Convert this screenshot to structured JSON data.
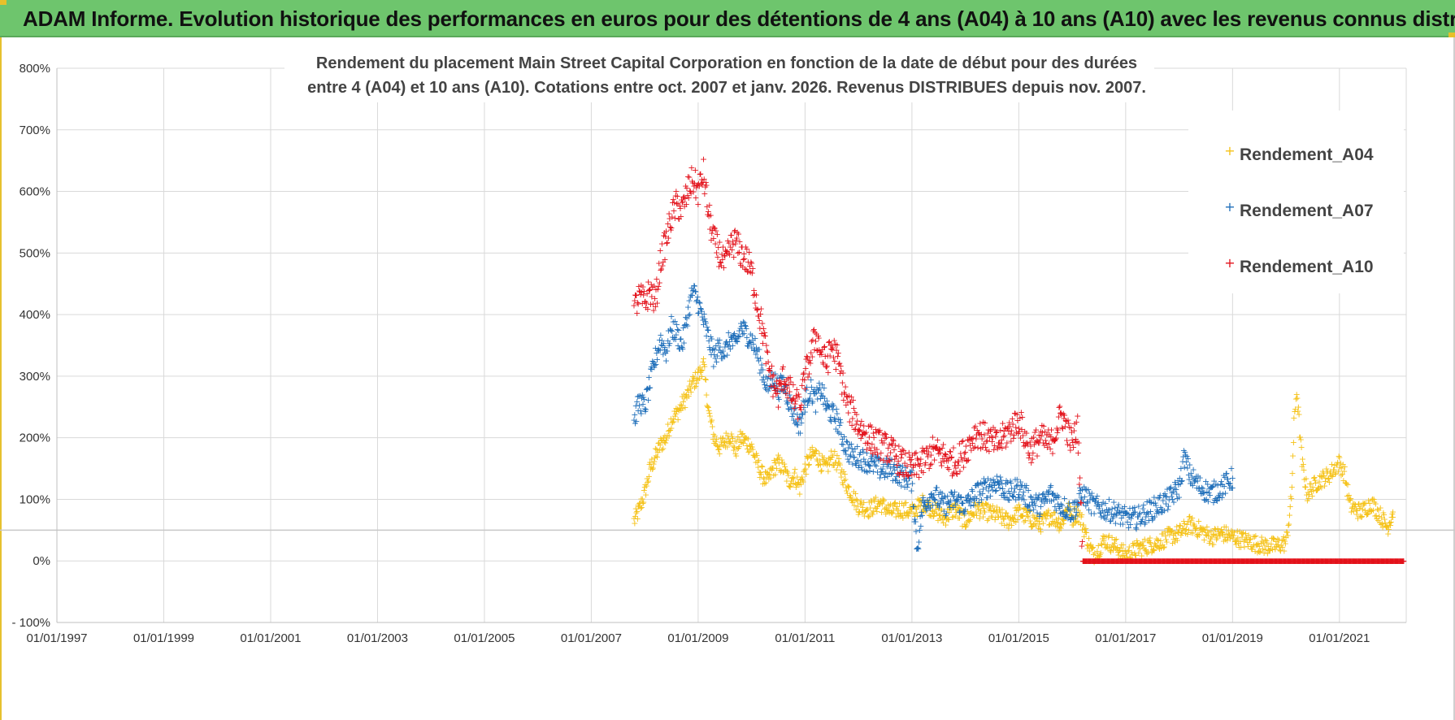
{
  "header": {
    "banner_title": "ADAM Informe. Evolution historique des performances en euros pour des détentions de 4 ans (A04) à 10 ans (A10) avec les revenus connus distribués"
  },
  "colors": {
    "banner_bg": "#6ec56d",
    "A04": "#f5c218",
    "A07": "#1f6fba",
    "A10": "#e3121b",
    "grid": "#d9d9d9",
    "zero_ref": "#c8c8c8"
  },
  "chart_data": {
    "type": "scatter",
    "title_lines": [
      "Rendement du placement Main Street Capital Corporation en fonction de la date de début pour des durées",
      "entre 4 (A04) et 10 ans (A10).  Cotations entre oct. 2007 et janv. 2026.  Revenus DISTRIBUES depuis nov. 2007."
    ],
    "xlabel": "",
    "ylabel": "",
    "x_range": [
      1997.0,
      2022.25
    ],
    "y_range": [
      -100,
      800
    ],
    "y_ticks": [
      -100,
      0,
      100,
      200,
      300,
      400,
      500,
      600,
      700,
      800
    ],
    "y_tick_labels": [
      "- 100%",
      "0%",
      "100%",
      "200%",
      "300%",
      "400%",
      "500%",
      "600%",
      "700%",
      "800%"
    ],
    "x_ticks": [
      1997,
      1999,
      2001,
      2003,
      2005,
      2007,
      2009,
      2011,
      2013,
      2015,
      2017,
      2019,
      2021
    ],
    "x_tick_labels": [
      "01/01/1997",
      "01/01/1999",
      "01/01/2001",
      "01/01/2003",
      "01/01/2005",
      "01/01/2007",
      "01/01/2009",
      "01/01/2011",
      "01/01/2013",
      "01/01/2015",
      "01/01/2017",
      "01/01/2019",
      "01/01/2021"
    ],
    "legend": {
      "position": "top-right",
      "entries": [
        "Rendement_A04",
        "Rendement_A07",
        "Rendement_A10"
      ]
    },
    "series": [
      {
        "name": "Rendement_A04",
        "marker": "+",
        "points": [
          [
            2007.8,
            65
          ],
          [
            2007.9,
            85
          ],
          [
            2008.0,
            110
          ],
          [
            2008.1,
            150
          ],
          [
            2008.2,
            170
          ],
          [
            2008.3,
            190
          ],
          [
            2008.4,
            200
          ],
          [
            2008.5,
            230
          ],
          [
            2008.6,
            240
          ],
          [
            2008.7,
            255
          ],
          [
            2008.8,
            270
          ],
          [
            2008.9,
            290
          ],
          [
            2009.0,
            300
          ],
          [
            2009.1,
            320
          ],
          [
            2009.2,
            240
          ],
          [
            2009.3,
            200
          ],
          [
            2009.4,
            185
          ],
          [
            2009.5,
            195
          ],
          [
            2009.6,
            205
          ],
          [
            2009.7,
            180
          ],
          [
            2009.8,
            200
          ],
          [
            2009.9,
            195
          ],
          [
            2010.0,
            185
          ],
          [
            2010.1,
            160
          ],
          [
            2010.2,
            140
          ],
          [
            2010.3,
            130
          ],
          [
            2010.4,
            150
          ],
          [
            2010.5,
            160
          ],
          [
            2010.6,
            150
          ],
          [
            2010.7,
            130
          ],
          [
            2010.8,
            140
          ],
          [
            2010.9,
            120
          ],
          [
            2011.0,
            150
          ],
          [
            2011.1,
            170
          ],
          [
            2011.2,
            175
          ],
          [
            2011.3,
            160
          ],
          [
            2011.4,
            150
          ],
          [
            2011.5,
            170
          ],
          [
            2011.6,
            160
          ],
          [
            2011.7,
            140
          ],
          [
            2011.8,
            120
          ],
          [
            2011.9,
            105
          ],
          [
            2012.0,
            90
          ],
          [
            2012.2,
            85
          ],
          [
            2012.4,
            95
          ],
          [
            2012.6,
            80
          ],
          [
            2012.8,
            85
          ],
          [
            2013.0,
            80
          ],
          [
            2013.2,
            95
          ],
          [
            2013.4,
            85
          ],
          [
            2013.6,
            70
          ],
          [
            2013.8,
            85
          ],
          [
            2014.0,
            65
          ],
          [
            2014.2,
            85
          ],
          [
            2014.4,
            80
          ],
          [
            2014.6,
            75
          ],
          [
            2014.8,
            65
          ],
          [
            2015.0,
            80
          ],
          [
            2015.2,
            70
          ],
          [
            2015.4,
            60
          ],
          [
            2015.6,
            75
          ],
          [
            2015.8,
            60
          ],
          [
            2015.9,
            90
          ],
          [
            2016.0,
            70
          ],
          [
            2016.1,
            80
          ],
          [
            2016.2,
            60
          ],
          [
            2016.3,
            30
          ],
          [
            2016.4,
            10
          ],
          [
            2016.5,
            20
          ],
          [
            2016.6,
            35
          ],
          [
            2016.8,
            25
          ],
          [
            2017.0,
            10
          ],
          [
            2017.2,
            20
          ],
          [
            2017.4,
            25
          ],
          [
            2017.6,
            30
          ],
          [
            2017.8,
            40
          ],
          [
            2018.0,
            45
          ],
          [
            2018.2,
            60
          ],
          [
            2018.4,
            50
          ],
          [
            2018.6,
            40
          ],
          [
            2018.8,
            45
          ],
          [
            2019.0,
            40
          ],
          [
            2019.2,
            35
          ],
          [
            2019.4,
            30
          ],
          [
            2019.6,
            25
          ],
          [
            2019.8,
            25
          ],
          [
            2020.0,
            30
          ],
          [
            2020.1,
            100
          ],
          [
            2020.15,
            220
          ],
          [
            2020.2,
            280
          ],
          [
            2020.3,
            160
          ],
          [
            2020.4,
            110
          ],
          [
            2020.5,
            120
          ],
          [
            2020.6,
            130
          ],
          [
            2020.8,
            140
          ],
          [
            2021.0,
            160
          ],
          [
            2021.1,
            140
          ],
          [
            2021.2,
            90
          ],
          [
            2021.4,
            80
          ],
          [
            2021.6,
            95
          ],
          [
            2021.8,
            70
          ],
          [
            2021.9,
            55
          ],
          [
            2022.0,
            80
          ]
        ]
      },
      {
        "name": "Rendement_A07",
        "marker": "+",
        "points": [
          [
            2007.8,
            230
          ],
          [
            2007.9,
            260
          ],
          [
            2008.0,
            250
          ],
          [
            2008.1,
            290
          ],
          [
            2008.2,
            330
          ],
          [
            2008.3,
            360
          ],
          [
            2008.4,
            340
          ],
          [
            2008.5,
            380
          ],
          [
            2008.6,
            370
          ],
          [
            2008.7,
            350
          ],
          [
            2008.8,
            400
          ],
          [
            2008.9,
            440
          ],
          [
            2009.0,
            420
          ],
          [
            2009.1,
            390
          ],
          [
            2009.2,
            360
          ],
          [
            2009.3,
            330
          ],
          [
            2009.4,
            350
          ],
          [
            2009.5,
            340
          ],
          [
            2009.6,
            360
          ],
          [
            2009.7,
            350
          ],
          [
            2009.8,
            380
          ],
          [
            2009.9,
            370
          ],
          [
            2010.0,
            360
          ],
          [
            2010.1,
            340
          ],
          [
            2010.2,
            310
          ],
          [
            2010.3,
            280
          ],
          [
            2010.4,
            300
          ],
          [
            2010.5,
            280
          ],
          [
            2010.6,
            290
          ],
          [
            2010.7,
            260
          ],
          [
            2010.8,
            240
          ],
          [
            2010.9,
            220
          ],
          [
            2011.0,
            260
          ],
          [
            2011.1,
            280
          ],
          [
            2011.2,
            260
          ],
          [
            2011.3,
            280
          ],
          [
            2011.4,
            250
          ],
          [
            2011.5,
            240
          ],
          [
            2011.6,
            230
          ],
          [
            2011.7,
            200
          ],
          [
            2011.8,
            180
          ],
          [
            2011.9,
            170
          ],
          [
            2012.0,
            170
          ],
          [
            2012.2,
            160
          ],
          [
            2012.4,
            150
          ],
          [
            2012.6,
            150
          ],
          [
            2012.8,
            140
          ],
          [
            2013.0,
            130
          ],
          [
            2013.1,
            20
          ],
          [
            2013.2,
            90
          ],
          [
            2013.3,
            100
          ],
          [
            2013.4,
            110
          ],
          [
            2013.6,
            90
          ],
          [
            2013.8,
            100
          ],
          [
            2014.0,
            90
          ],
          [
            2014.2,
            110
          ],
          [
            2014.4,
            120
          ],
          [
            2014.6,
            130
          ],
          [
            2014.8,
            110
          ],
          [
            2015.0,
            120
          ],
          [
            2015.2,
            100
          ],
          [
            2015.4,
            90
          ],
          [
            2015.6,
            110
          ],
          [
            2015.8,
            90
          ],
          [
            2016.0,
            80
          ],
          [
            2016.2,
            110
          ],
          [
            2016.4,
            90
          ],
          [
            2016.6,
            85
          ],
          [
            2016.8,
            80
          ],
          [
            2017.0,
            70
          ],
          [
            2017.2,
            70
          ],
          [
            2017.4,
            80
          ],
          [
            2017.6,
            90
          ],
          [
            2017.8,
            100
          ],
          [
            2018.0,
            120
          ],
          [
            2018.1,
            170
          ],
          [
            2018.2,
            140
          ],
          [
            2018.4,
            120
          ],
          [
            2018.6,
            110
          ],
          [
            2018.8,
            120
          ],
          [
            2019.0,
            135
          ]
        ]
      },
      {
        "name": "Rendement_A10",
        "marker": "+",
        "points": [
          [
            2007.8,
            410
          ],
          [
            2007.9,
            430
          ],
          [
            2008.0,
            420
          ],
          [
            2008.1,
            440
          ],
          [
            2008.2,
            420
          ],
          [
            2008.3,
            490
          ],
          [
            2008.4,
            520
          ],
          [
            2008.5,
            560
          ],
          [
            2008.6,
            580
          ],
          [
            2008.7,
            570
          ],
          [
            2008.8,
            600
          ],
          [
            2008.9,
            620
          ],
          [
            2009.0,
            600
          ],
          [
            2009.1,
            630
          ],
          [
            2009.2,
            560
          ],
          [
            2009.3,
            520
          ],
          [
            2009.4,
            500
          ],
          [
            2009.5,
            480
          ],
          [
            2009.6,
            510
          ],
          [
            2009.7,
            520
          ],
          [
            2009.8,
            500
          ],
          [
            2009.9,
            490
          ],
          [
            2010.0,
            470
          ],
          [
            2010.1,
            420
          ],
          [
            2010.2,
            380
          ],
          [
            2010.3,
            320
          ],
          [
            2010.4,
            290
          ],
          [
            2010.5,
            270
          ],
          [
            2010.6,
            300
          ],
          [
            2010.7,
            280
          ],
          [
            2010.8,
            260
          ],
          [
            2010.9,
            250
          ],
          [
            2011.0,
            300
          ],
          [
            2011.1,
            330
          ],
          [
            2011.2,
            370
          ],
          [
            2011.3,
            340
          ],
          [
            2011.4,
            320
          ],
          [
            2011.5,
            350
          ],
          [
            2011.6,
            330
          ],
          [
            2011.7,
            290
          ],
          [
            2011.8,
            250
          ],
          [
            2011.9,
            240
          ],
          [
            2012.0,
            220
          ],
          [
            2012.2,
            200
          ],
          [
            2012.4,
            190
          ],
          [
            2012.6,
            180
          ],
          [
            2012.8,
            160
          ],
          [
            2013.0,
            150
          ],
          [
            2013.2,
            160
          ],
          [
            2013.4,
            180
          ],
          [
            2013.6,
            170
          ],
          [
            2013.8,
            160
          ],
          [
            2014.0,
            180
          ],
          [
            2014.2,
            210
          ],
          [
            2014.4,
            200
          ],
          [
            2014.6,
            190
          ],
          [
            2014.8,
            210
          ],
          [
            2015.0,
            230
          ],
          [
            2015.2,
            180
          ],
          [
            2015.4,
            200
          ],
          [
            2015.6,
            190
          ],
          [
            2015.8,
            240
          ],
          [
            2016.0,
            190
          ],
          [
            2016.1,
            220
          ],
          [
            2016.2,
            0
          ],
          [
            2017.0,
            0
          ],
          [
            2018.0,
            0
          ],
          [
            2019.0,
            0
          ],
          [
            2020.0,
            0
          ],
          [
            2021.0,
            0
          ],
          [
            2022.2,
            0
          ]
        ]
      }
    ]
  }
}
